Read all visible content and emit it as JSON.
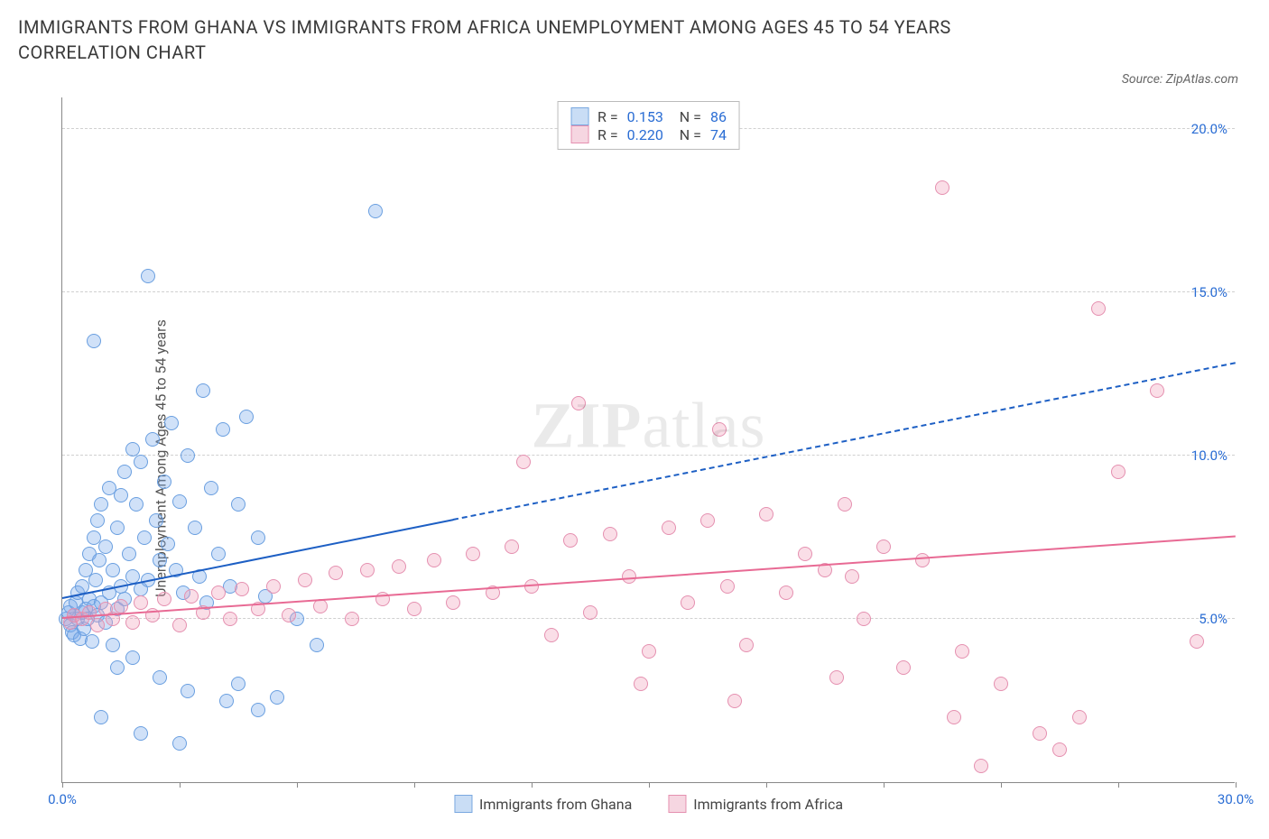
{
  "title": "IMMIGRANTS FROM GHANA VS IMMIGRANTS FROM AFRICA UNEMPLOYMENT AMONG AGES 45 TO 54 YEARS CORRELATION CHART",
  "source_label": "Source: ZipAtlas.com",
  "ylabel": "Unemployment Among Ages 45 to 54 years",
  "watermark_a": "ZIP",
  "watermark_b": "atlas",
  "chart": {
    "type": "scatter",
    "background_color": "#ffffff",
    "xlim": [
      0,
      30
    ],
    "ylim": [
      0,
      21
    ],
    "xtick_positions": [
      0,
      3,
      6,
      9,
      12,
      15,
      18,
      21,
      24,
      27,
      30
    ],
    "xtick_labels_shown": {
      "0": "0.0%",
      "30": "30.0%"
    },
    "ytick_positions": [
      5,
      10,
      15,
      20
    ],
    "ytick_labels": {
      "5": "5.0%",
      "10": "10.0%",
      "15": "15.0%",
      "20": "20.0%"
    },
    "grid_dash_color": "#d0d0d0",
    "axis_color": "#888888",
    "tick_label_color": "#2a6dd4",
    "series": [
      {
        "id": "ghana",
        "name": "Immigrants from Ghana",
        "color_fill": "rgba(120,170,235,0.35)",
        "color_stroke": "#6a9fe0",
        "swatch_fill": "#c9ddf5",
        "swatch_border": "#7aa8e0",
        "marker_radius": 8,
        "R": "0.153",
        "N": "86",
        "trend": {
          "color": "#1d5fc4",
          "x1": 0,
          "y1": 5.6,
          "x2_solid": 10,
          "y2_solid": 8.0,
          "x2_dashed": 30,
          "y2_dashed": 12.8
        },
        "points": [
          [
            0.1,
            5.0
          ],
          [
            0.15,
            5.2
          ],
          [
            0.2,
            4.8
          ],
          [
            0.2,
            5.4
          ],
          [
            0.25,
            4.6
          ],
          [
            0.3,
            5.1
          ],
          [
            0.3,
            4.5
          ],
          [
            0.35,
            5.5
          ],
          [
            0.4,
            5.0
          ],
          [
            0.4,
            5.8
          ],
          [
            0.45,
            4.4
          ],
          [
            0.5,
            5.2
          ],
          [
            0.5,
            6.0
          ],
          [
            0.55,
            4.7
          ],
          [
            0.6,
            5.3
          ],
          [
            0.6,
            6.5
          ],
          [
            0.65,
            5.0
          ],
          [
            0.7,
            5.6
          ],
          [
            0.7,
            7.0
          ],
          [
            0.75,
            4.3
          ],
          [
            0.8,
            5.4
          ],
          [
            0.8,
            7.5
          ],
          [
            0.85,
            6.2
          ],
          [
            0.9,
            5.1
          ],
          [
            0.9,
            8.0
          ],
          [
            0.95,
            6.8
          ],
          [
            1.0,
            5.5
          ],
          [
            1.0,
            8.5
          ],
          [
            1.1,
            4.9
          ],
          [
            1.1,
            7.2
          ],
          [
            1.2,
            5.8
          ],
          [
            1.2,
            9.0
          ],
          [
            1.3,
            6.5
          ],
          [
            1.3,
            4.2
          ],
          [
            1.4,
            7.8
          ],
          [
            1.4,
            5.3
          ],
          [
            1.5,
            8.8
          ],
          [
            1.5,
            6.0
          ],
          [
            1.6,
            9.5
          ],
          [
            1.6,
            5.6
          ],
          [
            1.7,
            7.0
          ],
          [
            1.8,
            10.2
          ],
          [
            1.8,
            6.3
          ],
          [
            1.9,
            8.5
          ],
          [
            2.0,
            5.9
          ],
          [
            2.0,
            9.8
          ],
          [
            2.1,
            7.5
          ],
          [
            2.2,
            6.2
          ],
          [
            2.3,
            10.5
          ],
          [
            2.4,
            8.0
          ],
          [
            2.5,
            6.8
          ],
          [
            2.6,
            9.2
          ],
          [
            2.7,
            7.3
          ],
          [
            2.8,
            11.0
          ],
          [
            2.9,
            6.5
          ],
          [
            3.0,
            8.6
          ],
          [
            3.1,
            5.8
          ],
          [
            3.2,
            10.0
          ],
          [
            3.4,
            7.8
          ],
          [
            3.5,
            6.3
          ],
          [
            3.6,
            12.0
          ],
          [
            3.7,
            5.5
          ],
          [
            3.8,
            9.0
          ],
          [
            4.0,
            7.0
          ],
          [
            4.1,
            10.8
          ],
          [
            4.3,
            6.0
          ],
          [
            4.5,
            8.5
          ],
          [
            4.7,
            11.2
          ],
          [
            5.0,
            7.5
          ],
          [
            5.2,
            5.7
          ],
          [
            2.2,
            15.5
          ],
          [
            0.8,
            13.5
          ],
          [
            8.0,
            17.5
          ],
          [
            1.4,
            3.5
          ],
          [
            1.8,
            3.8
          ],
          [
            2.5,
            3.2
          ],
          [
            3.2,
            2.8
          ],
          [
            4.2,
            2.5
          ],
          [
            5.0,
            2.2
          ],
          [
            1.0,
            2.0
          ],
          [
            2.0,
            1.5
          ],
          [
            3.0,
            1.2
          ],
          [
            4.5,
            3.0
          ],
          [
            5.5,
            2.6
          ],
          [
            6.0,
            5.0
          ],
          [
            6.5,
            4.2
          ]
        ]
      },
      {
        "id": "africa",
        "name": "Immigrants from Africa",
        "color_fill": "rgba(240,160,185,0.35)",
        "color_stroke": "#e590b0",
        "swatch_fill": "#f6d6e1",
        "swatch_border": "#e590b0",
        "marker_radius": 8,
        "R": "0.220",
        "N": "74",
        "trend": {
          "color": "#e86a94",
          "x1": 0,
          "y1": 5.0,
          "x2_solid": 30,
          "y2_solid": 7.5,
          "x2_dashed": 30,
          "y2_dashed": 7.5
        },
        "points": [
          [
            0.2,
            4.9
          ],
          [
            0.3,
            5.1
          ],
          [
            0.5,
            5.0
          ],
          [
            0.7,
            5.2
          ],
          [
            0.9,
            4.8
          ],
          [
            1.1,
            5.3
          ],
          [
            1.3,
            5.0
          ],
          [
            1.5,
            5.4
          ],
          [
            1.8,
            4.9
          ],
          [
            2.0,
            5.5
          ],
          [
            2.3,
            5.1
          ],
          [
            2.6,
            5.6
          ],
          [
            3.0,
            4.8
          ],
          [
            3.3,
            5.7
          ],
          [
            3.6,
            5.2
          ],
          [
            4.0,
            5.8
          ],
          [
            4.3,
            5.0
          ],
          [
            4.6,
            5.9
          ],
          [
            5.0,
            5.3
          ],
          [
            5.4,
            6.0
          ],
          [
            5.8,
            5.1
          ],
          [
            6.2,
            6.2
          ],
          [
            6.6,
            5.4
          ],
          [
            7.0,
            6.4
          ],
          [
            7.4,
            5.0
          ],
          [
            7.8,
            6.5
          ],
          [
            8.2,
            5.6
          ],
          [
            8.6,
            6.6
          ],
          [
            9.0,
            5.3
          ],
          [
            9.5,
            6.8
          ],
          [
            10.0,
            5.5
          ],
          [
            10.5,
            7.0
          ],
          [
            11.0,
            5.8
          ],
          [
            11.5,
            7.2
          ],
          [
            12.0,
            6.0
          ],
          [
            12.5,
            4.5
          ],
          [
            13.0,
            7.4
          ],
          [
            13.5,
            5.2
          ],
          [
            14.0,
            7.6
          ],
          [
            14.5,
            6.3
          ],
          [
            15.0,
            4.0
          ],
          [
            15.5,
            7.8
          ],
          [
            16.0,
            5.5
          ],
          [
            16.5,
            8.0
          ],
          [
            17.0,
            6.0
          ],
          [
            17.5,
            4.2
          ],
          [
            18.0,
            8.2
          ],
          [
            18.5,
            5.8
          ],
          [
            19.0,
            7.0
          ],
          [
            19.5,
            6.5
          ],
          [
            20.0,
            8.5
          ],
          [
            20.5,
            5.0
          ],
          [
            21.0,
            7.2
          ],
          [
            21.5,
            3.5
          ],
          [
            22.0,
            6.8
          ],
          [
            23.0,
            4.0
          ],
          [
            24.0,
            3.0
          ],
          [
            25.0,
            1.5
          ],
          [
            26.0,
            2.0
          ],
          [
            27.0,
            9.5
          ],
          [
            28.0,
            12.0
          ],
          [
            26.5,
            14.5
          ],
          [
            22.5,
            18.2
          ],
          [
            11.8,
            9.8
          ],
          [
            13.2,
            11.6
          ],
          [
            16.8,
            10.8
          ],
          [
            14.8,
            3.0
          ],
          [
            17.2,
            2.5
          ],
          [
            19.8,
            3.2
          ],
          [
            22.8,
            2.0
          ],
          [
            25.5,
            1.0
          ],
          [
            29.0,
            4.3
          ],
          [
            23.5,
            0.5
          ],
          [
            20.2,
            6.3
          ]
        ]
      }
    ],
    "legend_bottom": [
      {
        "series": "ghana"
      },
      {
        "series": "africa"
      }
    ]
  }
}
